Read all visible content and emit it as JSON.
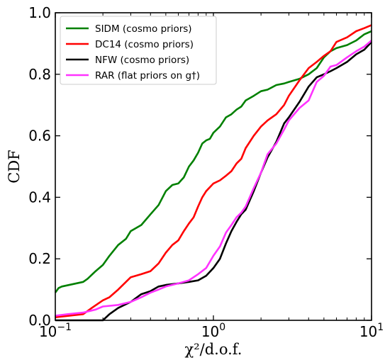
{
  "chart_data": {
    "type": "line",
    "xlabel": "χ²/d.o.f.",
    "ylabel": "CDF",
    "xscale": "log",
    "xlim": [
      0.1,
      10
    ],
    "ylim": [
      0.0,
      1.0
    ],
    "x_ticks": [
      {
        "value": 0.1,
        "base": "10",
        "exp": "−1"
      },
      {
        "value": 1,
        "base": "10",
        "exp": "0"
      },
      {
        "value": 10,
        "base": "10",
        "exp": "1"
      }
    ],
    "y_ticks": [
      {
        "value": 0.0,
        "label": "0.0"
      },
      {
        "value": 0.2,
        "label": "0.2"
      },
      {
        "value": 0.4,
        "label": "0.4"
      },
      {
        "value": 0.6,
        "label": "0.6"
      },
      {
        "value": 0.8,
        "label": "0.8"
      },
      {
        "value": 1.0,
        "label": "1.0"
      }
    ],
    "legend_position": "top-left",
    "series": [
      {
        "name": "SIDM (cosmo priors)",
        "color": "#008000",
        "x": [
          0.1,
          0.105,
          0.11,
          0.15,
          0.16,
          0.18,
          0.2,
          0.22,
          0.25,
          0.28,
          0.3,
          0.35,
          0.4,
          0.45,
          0.5,
          0.55,
          0.6,
          0.65,
          0.7,
          0.75,
          0.8,
          0.85,
          0.9,
          0.95,
          1.0,
          1.1,
          1.2,
          1.3,
          1.4,
          1.5,
          1.6,
          1.8,
          2.0,
          2.2,
          2.5,
          2.8,
          3.0,
          3.5,
          4.0,
          4.5,
          5.0,
          5.5,
          6.0,
          7.0,
          8.0,
          9.0,
          10.0
        ],
        "y": [
          0.09,
          0.105,
          0.11,
          0.125,
          0.135,
          0.16,
          0.18,
          0.21,
          0.245,
          0.265,
          0.29,
          0.31,
          0.345,
          0.375,
          0.42,
          0.44,
          0.445,
          0.465,
          0.5,
          0.52,
          0.545,
          0.575,
          0.585,
          0.59,
          0.61,
          0.63,
          0.66,
          0.67,
          0.685,
          0.695,
          0.715,
          0.73,
          0.745,
          0.75,
          0.765,
          0.77,
          0.775,
          0.785,
          0.8,
          0.82,
          0.855,
          0.875,
          0.885,
          0.895,
          0.91,
          0.93,
          0.94
        ]
      },
      {
        "name": "DC14 (cosmo priors)",
        "color": "#ff0000",
        "x": [
          0.1,
          0.15,
          0.17,
          0.2,
          0.22,
          0.25,
          0.3,
          0.35,
          0.4,
          0.45,
          0.5,
          0.55,
          0.6,
          0.65,
          0.7,
          0.75,
          0.8,
          0.85,
          0.9,
          1.0,
          1.1,
          1.2,
          1.3,
          1.4,
          1.5,
          1.6,
          1.8,
          2.0,
          2.2,
          2.5,
          2.8,
          3.0,
          3.5,
          4.0,
          4.5,
          5.0,
          5.5,
          6.0,
          7.0,
          8.0,
          9.0,
          10.0
        ],
        "y": [
          0.01,
          0.02,
          0.04,
          0.065,
          0.075,
          0.1,
          0.14,
          0.15,
          0.16,
          0.185,
          0.22,
          0.245,
          0.26,
          0.29,
          0.315,
          0.335,
          0.37,
          0.4,
          0.42,
          0.445,
          0.455,
          0.47,
          0.485,
          0.51,
          0.525,
          0.56,
          0.6,
          0.63,
          0.65,
          0.67,
          0.7,
          0.73,
          0.78,
          0.82,
          0.84,
          0.86,
          0.875,
          0.905,
          0.92,
          0.94,
          0.95,
          0.96
        ]
      },
      {
        "name": "NFW (cosmo priors)",
        "color": "#000000",
        "x": [
          0.1,
          0.2,
          0.22,
          0.25,
          0.3,
          0.35,
          0.4,
          0.45,
          0.5,
          0.6,
          0.7,
          0.8,
          0.9,
          1.0,
          1.1,
          1.2,
          1.3,
          1.4,
          1.5,
          1.6,
          1.8,
          2.0,
          2.2,
          2.5,
          2.8,
          3.0,
          3.5,
          4.0,
          4.5,
          5.0,
          5.5,
          6.0,
          7.0,
          8.0,
          9.0,
          10.0
        ],
        "y": [
          0.0,
          0.0,
          0.02,
          0.04,
          0.06,
          0.085,
          0.095,
          0.11,
          0.115,
          0.12,
          0.125,
          0.13,
          0.145,
          0.17,
          0.2,
          0.25,
          0.29,
          0.32,
          0.345,
          0.36,
          0.42,
          0.48,
          0.53,
          0.58,
          0.64,
          0.66,
          0.71,
          0.76,
          0.79,
          0.8,
          0.81,
          0.82,
          0.84,
          0.865,
          0.88,
          0.905
        ]
      },
      {
        "name": "RAR (flat priors on g†)",
        "color": "#ff33ff",
        "x": [
          0.1,
          0.12,
          0.15,
          0.18,
          0.2,
          0.25,
          0.3,
          0.35,
          0.4,
          0.45,
          0.5,
          0.6,
          0.7,
          0.8,
          0.9,
          1.0,
          1.1,
          1.2,
          1.3,
          1.4,
          1.5,
          1.6,
          1.8,
          2.0,
          2.2,
          2.5,
          2.8,
          3.0,
          3.5,
          4.0,
          4.5,
          5.0,
          5.5,
          6.0,
          7.0,
          8.0,
          9.0,
          10.0
        ],
        "y": [
          0.015,
          0.02,
          0.025,
          0.035,
          0.045,
          0.05,
          0.06,
          0.075,
          0.09,
          0.1,
          0.11,
          0.12,
          0.13,
          0.15,
          0.17,
          0.21,
          0.24,
          0.285,
          0.31,
          0.335,
          0.35,
          0.37,
          0.43,
          0.48,
          0.54,
          0.575,
          0.62,
          0.65,
          0.69,
          0.715,
          0.775,
          0.795,
          0.825,
          0.83,
          0.855,
          0.875,
          0.89,
          0.91
        ]
      }
    ]
  }
}
